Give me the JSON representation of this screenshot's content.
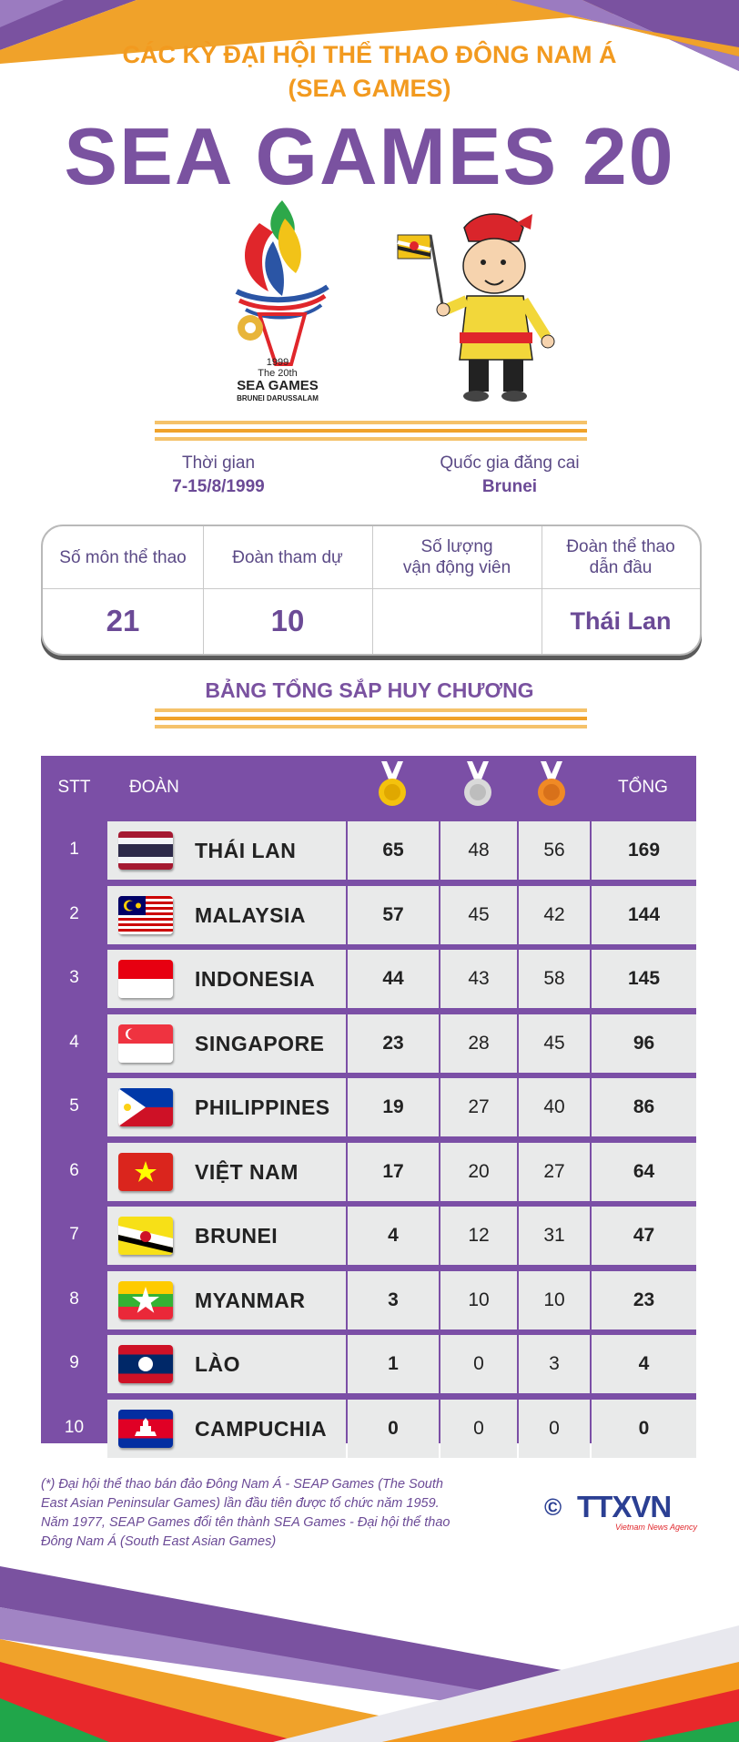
{
  "header": {
    "kicker_line1": "CÁC KỲ ĐẠI HỘI THỂ THAO ĐÔNG NAM Á",
    "kicker_line2": "(SEA GAMES)",
    "title": "SEA GAMES 20"
  },
  "logo": {
    "line1": "1999",
    "line2": "The 20th",
    "line3": "SEA GAMES",
    "line4": "BRUNEI DARUSSALAM"
  },
  "info": {
    "time_label": "Thời gian",
    "time_value": "7-15/8/1999",
    "host_label": "Quốc gia đăng cai",
    "host_value": "Brunei"
  },
  "stats": {
    "sports_label": "Số môn thể thao",
    "sports_value": "21",
    "teams_label": "Đoàn tham dự",
    "teams_value": "10",
    "athletes_label_1": "Số lượng",
    "athletes_label_2": "vận động viên",
    "athletes_value": "",
    "leader_label_1": "Đoàn thể thao",
    "leader_label_2": "dẫn đầu",
    "leader_value": "Thái Lan"
  },
  "medal_table": {
    "title": "BẢNG TỔNG SẮP HUY CHƯƠNG",
    "col_stt": "STT",
    "col_team": "ĐOÀN",
    "col_total": "TỔNG",
    "rows": [
      {
        "stt": "1",
        "team": "THÁI LAN",
        "gold": "65",
        "silver": "48",
        "bronze": "56",
        "total": "169"
      },
      {
        "stt": "2",
        "team": "MALAYSIA",
        "gold": "57",
        "silver": "45",
        "bronze": "42",
        "total": "144"
      },
      {
        "stt": "3",
        "team": "INDONESIA",
        "gold": "44",
        "silver": "43",
        "bronze": "58",
        "total": "145"
      },
      {
        "stt": "4",
        "team": "SINGAPORE",
        "gold": "23",
        "silver": "28",
        "bronze": "45",
        "total": "96"
      },
      {
        "stt": "5",
        "team": "PHILIPPINES",
        "gold": "19",
        "silver": "27",
        "bronze": "40",
        "total": "86"
      },
      {
        "stt": "6",
        "team": "VIỆT NAM",
        "gold": "17",
        "silver": "20",
        "bronze": "27",
        "total": "64"
      },
      {
        "stt": "7",
        "team": "BRUNEI",
        "gold": "4",
        "silver": "12",
        "bronze": "31",
        "total": "47"
      },
      {
        "stt": "8",
        "team": "MYANMAR",
        "gold": "3",
        "silver": "10",
        "bronze": "10",
        "total": "23"
      },
      {
        "stt": "9",
        "team": "LÀO",
        "gold": "1",
        "silver": "0",
        "bronze": "3",
        "total": "4"
      },
      {
        "stt": "10",
        "team": "CAMPUCHIA",
        "gold": "0",
        "silver": "0",
        "bronze": "0",
        "total": "0"
      }
    ]
  },
  "footnote": {
    "text": "(*) Đại hội thể thao bán đảo Đông Nam Á - SEAP Games (The South East Asian Peninsular Games) lần đầu tiên được tổ chức năm 1959. Năm 1977, SEAP Games đổi tên thành SEA Games - Đại hội thể thao Đông Nam Á (South East Asian Games)"
  },
  "brand": {
    "copyright": "©",
    "name": "TTXVN",
    "sub": "Vietnam News Agency"
  },
  "colors": {
    "purple": "#7b4fa6",
    "orange": "#f29a1f",
    "red": "#e8282b",
    "green": "#20a64a"
  }
}
